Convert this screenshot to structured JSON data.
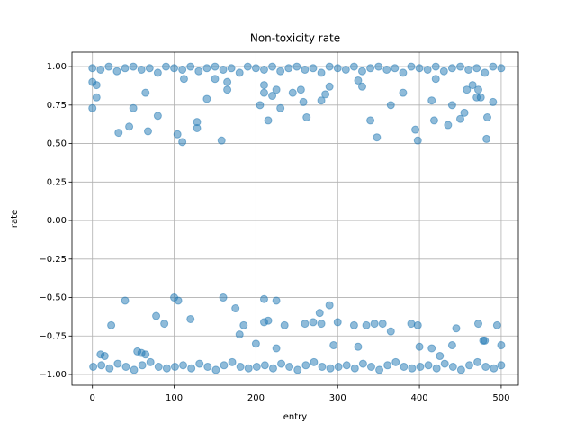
{
  "chart_data": {
    "type": "scatter",
    "title": "Non-toxicity rate",
    "x_label": "entry",
    "y_label": "rate",
    "color": "#1f77b4",
    "grid": true,
    "xlim": [
      -25,
      521
    ],
    "ylim": [
      -1.07,
      1.094
    ],
    "xticks": [
      0,
      100,
      200,
      300,
      400,
      500
    ],
    "yticks": [
      {
        "value": -1,
        "label": "−1.00"
      },
      {
        "value": -0.75,
        "label": "−0.75"
      },
      {
        "value": -0.5,
        "label": "−0.50"
      },
      {
        "value": -0.25,
        "label": "−0.25"
      },
      {
        "value": 0,
        "label": "0.00"
      },
      {
        "value": 0.25,
        "label": "0.25"
      },
      {
        "value": 0.5,
        "label": "0.50"
      },
      {
        "value": 0.75,
        "label": "0.75"
      },
      {
        "value": 1,
        "label": "1.00"
      }
    ],
    "x": [
      0,
      10,
      20,
      30,
      40,
      50,
      60,
      70,
      80,
      90,
      100,
      110,
      120,
      130,
      140,
      150,
      160,
      170,
      180,
      190,
      200,
      210,
      220,
      230,
      240,
      250,
      260,
      270,
      280,
      290,
      300,
      310,
      320,
      330,
      340,
      350,
      360,
      370,
      380,
      390,
      400,
      410,
      420,
      430,
      440,
      450,
      460,
      470,
      480,
      490,
      500,
      1,
      11,
      21,
      31,
      41,
      51,
      61,
      71,
      81,
      91,
      101,
      111,
      121,
      131,
      141,
      151,
      161,
      171,
      181,
      191,
      201,
      211,
      221,
      231,
      241,
      251,
      261,
      271,
      281,
      291,
      301,
      311,
      321,
      331,
      341,
      351,
      361,
      371,
      381,
      391,
      401,
      411,
      421,
      431,
      441,
      451,
      461,
      471,
      481,
      491,
      500,
      0,
      0,
      5,
      5,
      32,
      45,
      50,
      65,
      68,
      80,
      104,
      110,
      112,
      128,
      128,
      140,
      150,
      158,
      165,
      165,
      205,
      210,
      210,
      215,
      220,
      225,
      230,
      245,
      255,
      258,
      262,
      280,
      285,
      290,
      325,
      330,
      340,
      348,
      365,
      380,
      395,
      398,
      415,
      418,
      420,
      435,
      440,
      450,
      455,
      458,
      465,
      470,
      472,
      475,
      482,
      483,
      490,
      23,
      40,
      78,
      88,
      100,
      105,
      120,
      160,
      175,
      180,
      185,
      200,
      210,
      210,
      215,
      225,
      225,
      235,
      260,
      270,
      278,
      280,
      290,
      295,
      300,
      320,
      325,
      335,
      345,
      355,
      365,
      390,
      398,
      400,
      415,
      425,
      440,
      445,
      472,
      478,
      480,
      495,
      500,
      10,
      15,
      55,
      60,
      65
    ],
    "values": [
      0.99,
      0.98,
      1.0,
      0.97,
      0.99,
      1.0,
      0.98,
      0.99,
      0.96,
      1.0,
      0.99,
      0.98,
      1.0,
      0.97,
      0.99,
      1.0,
      0.98,
      0.99,
      0.96,
      1.0,
      0.99,
      0.98,
      1.0,
      0.97,
      0.99,
      1.0,
      0.98,
      0.99,
      0.96,
      1.0,
      0.99,
      0.98,
      1.0,
      0.97,
      0.99,
      1.0,
      0.98,
      0.99,
      0.96,
      1.0,
      0.99,
      0.98,
      1.0,
      0.97,
      0.99,
      1.0,
      0.98,
      0.99,
      0.96,
      1.0,
      0.99,
      -0.95,
      -0.94,
      -0.96,
      -0.93,
      -0.95,
      -0.97,
      -0.94,
      -0.92,
      -0.95,
      -0.96,
      -0.95,
      -0.94,
      -0.96,
      -0.93,
      -0.95,
      -0.97,
      -0.94,
      -0.92,
      -0.95,
      -0.96,
      -0.95,
      -0.94,
      -0.96,
      -0.93,
      -0.95,
      -0.97,
      -0.94,
      -0.92,
      -0.95,
      -0.96,
      -0.95,
      -0.94,
      -0.96,
      -0.93,
      -0.95,
      -0.97,
      -0.94,
      -0.92,
      -0.95,
      -0.96,
      -0.95,
      -0.94,
      -0.96,
      -0.93,
      -0.95,
      -0.97,
      -0.94,
      -0.92,
      -0.95,
      -0.96,
      -0.94,
      0.9,
      0.73,
      0.8,
      0.88,
      0.57,
      0.61,
      0.73,
      0.83,
      0.58,
      0.68,
      0.56,
      0.51,
      0.92,
      0.64,
      0.6,
      0.79,
      0.92,
      0.52,
      0.85,
      0.9,
      0.75,
      0.83,
      0.88,
      0.65,
      0.81,
      0.85,
      0.73,
      0.83,
      0.85,
      0.77,
      0.67,
      0.78,
      0.82,
      0.87,
      0.91,
      0.87,
      0.65,
      0.54,
      0.75,
      0.83,
      0.59,
      0.52,
      0.78,
      0.65,
      0.92,
      0.62,
      0.75,
      0.66,
      0.7,
      0.85,
      0.88,
      0.8,
      0.85,
      0.8,
      0.53,
      0.67,
      0.77,
      -0.68,
      -0.52,
      -0.62,
      -0.67,
      -0.5,
      -0.52,
      -0.64,
      -0.5,
      -0.57,
      -0.74,
      -0.68,
      -0.8,
      -0.51,
      -0.66,
      -0.65,
      -0.52,
      -0.83,
      -0.68,
      -0.67,
      -0.66,
      -0.6,
      -0.67,
      -0.55,
      -0.81,
      -0.66,
      -0.68,
      -0.82,
      -0.68,
      -0.67,
      -0.67,
      -0.72,
      -0.67,
      -0.68,
      -0.82,
      -0.83,
      -0.88,
      -0.81,
      -0.7,
      -0.67,
      -0.78,
      -0.78,
      -0.68,
      -0.81,
      -0.87,
      -0.88,
      -0.85,
      -0.86,
      -0.87
    ]
  }
}
